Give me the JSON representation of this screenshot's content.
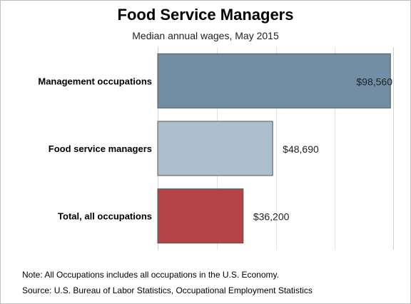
{
  "chart_data": {
    "type": "bar",
    "orientation": "horizontal",
    "title": "Food Service Managers",
    "subtitle": "Median annual wages, May 2015",
    "categories": [
      "Management occupations",
      "Food service managers",
      "Total, all occupations"
    ],
    "values": [
      98560,
      48690,
      36200
    ],
    "value_labels": [
      "$98,560",
      "$48,690",
      "$36,200"
    ],
    "colors": [
      "#728ea4",
      "#adbfcc",
      "#b54446"
    ],
    "xlim": [
      0,
      100000
    ],
    "grid": true
  },
  "notes": {
    "note": "Note: All Occupations includes all occupations in the U.S. Economy.",
    "source": "Source: U.S. Bureau of Labor Statistics, Occupational Employment Statistics"
  }
}
